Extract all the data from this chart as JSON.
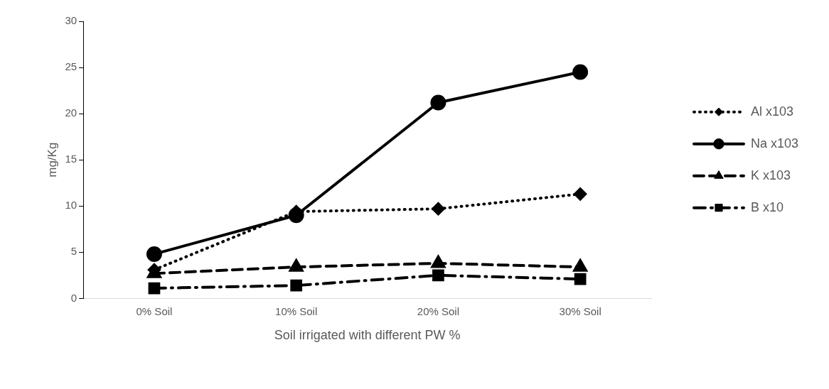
{
  "chart_data": {
    "type": "line",
    "xlabel": "Soil irrigated with different PW %",
    "ylabel": "mg/Kg",
    "categories": [
      "0% Soil",
      "10% Soil",
      "20% Soil",
      "30% Soil"
    ],
    "series": [
      {
        "name": "Al x103",
        "color": "#000000",
        "marker": "diamond",
        "line_style": "dotted",
        "values": [
          3.1,
          9.4,
          9.7,
          11.3
        ]
      },
      {
        "name": "Na x103",
        "color": "#000000",
        "marker": "circle",
        "line_style": "solid",
        "values": [
          4.8,
          9.0,
          21.2,
          24.5
        ]
      },
      {
        "name": "K x103",
        "color": "#000000",
        "marker": "triangle",
        "line_style": "dashed",
        "values": [
          2.7,
          3.4,
          3.8,
          3.4
        ]
      },
      {
        "name": "B x10",
        "color": "#000000",
        "marker": "square",
        "line_style": "dashdot",
        "values": [
          1.1,
          1.4,
          2.5,
          2.1
        ]
      }
    ],
    "ylim": [
      0,
      30
    ],
    "yticks": [
      0,
      5,
      10,
      15,
      20,
      25,
      30
    ],
    "grid": false,
    "legend": "right"
  }
}
